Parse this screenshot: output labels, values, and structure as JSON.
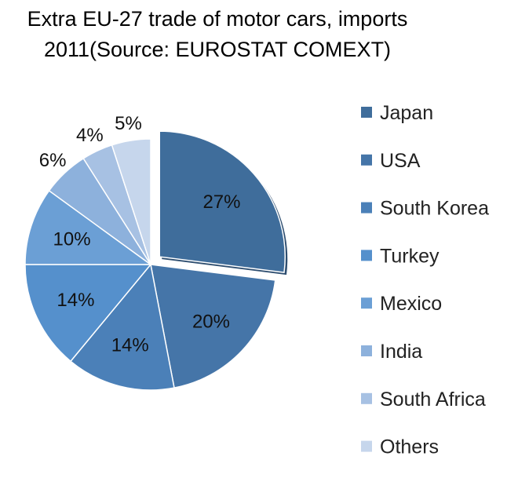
{
  "chart_data": {
    "type": "pie",
    "title_lines": [
      "Extra EU-27 trade of motor cars, imports",
      "2011(Source: EUROSTAT COMEXT)"
    ],
    "categories": [
      "Japan",
      "USA",
      "South Korea",
      "Turkey",
      "Mexico",
      "India",
      "South Africa",
      "Others"
    ],
    "values": [
      27,
      20,
      14,
      14,
      10,
      6,
      4,
      5
    ],
    "labels": [
      "27%",
      "20%",
      "14%",
      "14%",
      "10%",
      "6%",
      "4%",
      "5%"
    ],
    "colors": [
      "#3f6d9b",
      "#4575a8",
      "#4b80b8",
      "#5590cc",
      "#6b9fd5",
      "#8db1dc",
      "#a7c1e3",
      "#c6d6ec"
    ],
    "exploded": [
      "Japan"
    ],
    "legend_position": "right"
  }
}
